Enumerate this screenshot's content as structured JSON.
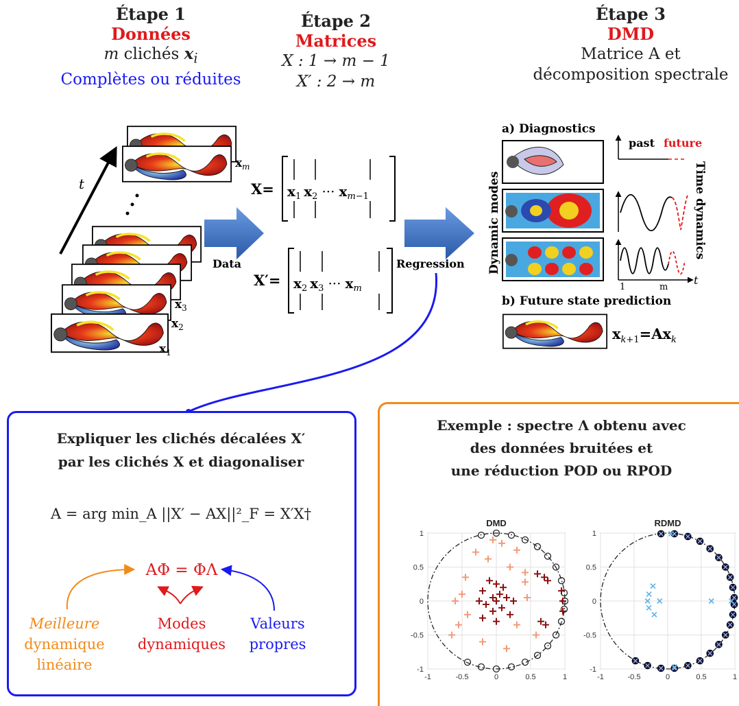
{
  "step1": {
    "title": "Étape 1",
    "subtitle": "Données",
    "line1": "m clichés xi",
    "line2": "Complètes ou réduites"
  },
  "step2": {
    "title": "Étape 2",
    "subtitle": "Matrices",
    "line1": "X : 1 → m − 1",
    "line2": "X′ : 2 → m"
  },
  "step3": {
    "title": "Étape 3",
    "subtitle": "DMD",
    "line1": "Matrice A et",
    "line2": "décomposition spectrale"
  },
  "diagram": {
    "t_label": "t",
    "snap_labels": [
      "x_m",
      "x_3",
      "x_2",
      "x_1"
    ],
    "data_label": "Data",
    "regression_label": "Regression",
    "matrix_X": "X=",
    "matrix_X_cols": "x1  x2  ···  xm−1",
    "matrix_Xp": "X′=",
    "matrix_Xp_cols": "x2  x3  ···  xm",
    "diag_title": "a) Diagnostics",
    "past": "past",
    "future": "future",
    "dynamic_modes": "Dynamic modes",
    "time_dynamics": "Time dynamics",
    "tick1": "1",
    "tickm": "m",
    "t_axis": "t",
    "future_title": "b) Future state prediction",
    "future_eq": "x k+1 = A x k"
  },
  "left_box": {
    "title1": "Expliquer les clichés décalées X′",
    "title2": "par les clichés X et diagonaliser",
    "formula": "A = arg min_A ||X′ − AX||²_F = X′X†",
    "eq": "AΦ = ΦΛ",
    "lab_left1": "Meilleure",
    "lab_left2": "dynamique",
    "lab_left3": "linéaire",
    "lab_mid1": "Modes",
    "lab_mid2": "dynamiques",
    "lab_right1": "Valeurs",
    "lab_right2": "propres"
  },
  "right_box": {
    "title1": "Exemple : spectre Λ obtenu avec",
    "title2": "des données bruitées et",
    "title3": "une réduction POD ou RPOD"
  },
  "chart_data": [
    {
      "type": "scatter",
      "title": "DMD",
      "xlim": [
        -1,
        1
      ],
      "ylim": [
        -1,
        1
      ],
      "xticks": [
        "-1",
        "-0.5",
        "0",
        "0.5",
        "1"
      ],
      "yticks": [
        "1",
        "0.5",
        "0",
        "-0.5",
        "-1"
      ],
      "grid": true,
      "series": [
        {
          "marker": "circle",
          "color": "#222222",
          "points": [
            [
              0,
              1
            ],
            [
              -0.22,
              0.97
            ],
            [
              0.22,
              0.97
            ],
            [
              0.42,
              0.9
            ],
            [
              0.6,
              0.8
            ],
            [
              0.75,
              0.66
            ],
            [
              0.87,
              0.5
            ],
            [
              0.95,
              0.3
            ],
            [
              0.99,
              0.12
            ],
            [
              1,
              0
            ],
            [
              0.99,
              -0.12
            ],
            [
              0.95,
              -0.3
            ],
            [
              0.87,
              -0.5
            ],
            [
              0.75,
              -0.66
            ],
            [
              0.6,
              -0.8
            ],
            [
              0.42,
              -0.9
            ],
            [
              0.22,
              -0.97
            ],
            [
              0,
              -1
            ],
            [
              -0.22,
              -0.97
            ],
            [
              -0.42,
              -0.9
            ]
          ]
        },
        {
          "marker": "plus",
          "color": "#f29a78",
          "points": [
            [
              0.08,
              0.85
            ],
            [
              0.3,
              0.75
            ],
            [
              -0.3,
              0.72
            ],
            [
              -0.12,
              0.62
            ],
            [
              0.2,
              0.5
            ],
            [
              0.42,
              0.42
            ],
            [
              -0.45,
              0.35
            ],
            [
              -0.5,
              0.1
            ],
            [
              -0.6,
              0
            ],
            [
              0.45,
              0.05
            ],
            [
              -0.42,
              -0.2
            ],
            [
              -0.55,
              -0.35
            ],
            [
              0.3,
              -0.35
            ],
            [
              -0.65,
              -0.5
            ],
            [
              -0.2,
              -0.6
            ],
            [
              0.15,
              -0.7
            ],
            [
              0.58,
              -0.5
            ],
            [
              0.42,
              0.28
            ],
            [
              -0.05,
              0.9
            ]
          ]
        },
        {
          "marker": "plus",
          "color": "#8a1010",
          "points": [
            [
              -0.1,
              0.3
            ],
            [
              0,
              0.25
            ],
            [
              0.1,
              0.2
            ],
            [
              -0.2,
              0.15
            ],
            [
              0.05,
              0.1
            ],
            [
              -0.05,
              0.05
            ],
            [
              0.15,
              0.05
            ],
            [
              -0.25,
              0
            ],
            [
              0,
              0
            ],
            [
              0.25,
              0
            ],
            [
              -0.15,
              -0.05
            ],
            [
              0.08,
              -0.1
            ],
            [
              -0.05,
              -0.15
            ],
            [
              0.2,
              -0.2
            ],
            [
              -0.2,
              -0.25
            ],
            [
              0,
              -0.3
            ],
            [
              0.6,
              0.4
            ],
            [
              0.7,
              0.35
            ],
            [
              0.75,
              0.3
            ],
            [
              0.65,
              -0.3
            ],
            [
              0.72,
              -0.35
            ],
            [
              0.95,
              0.15
            ],
            [
              0.97,
              -0.15
            ],
            [
              0.97,
              0
            ]
          ]
        }
      ]
    },
    {
      "type": "scatter",
      "title": "RDMD",
      "xlim": [
        -1,
        1
      ],
      "ylim": [
        -1,
        1
      ],
      "xticks": [
        "-1",
        "-0.5",
        "0",
        "0.5",
        "1"
      ],
      "yticks": [
        "1",
        "0.5",
        "0",
        "-0.5",
        "-1"
      ],
      "grid": true,
      "series": [
        {
          "marker": "circle-filled",
          "color": "#0a1a5a",
          "points": [
            [
              -0.1,
              0.99
            ],
            [
              0.1,
              0.99
            ],
            [
              0.3,
              0.95
            ],
            [
              0.48,
              0.88
            ],
            [
              0.63,
              0.77
            ],
            [
              0.76,
              0.64
            ],
            [
              0.86,
              0.5
            ],
            [
              0.93,
              0.35
            ],
            [
              0.97,
              0.2
            ],
            [
              0.99,
              0.05
            ],
            [
              0.99,
              -0.05
            ],
            [
              0.97,
              -0.2
            ],
            [
              0.93,
              -0.35
            ],
            [
              0.86,
              -0.5
            ],
            [
              0.76,
              -0.64
            ],
            [
              0.63,
              -0.77
            ],
            [
              0.48,
              -0.88
            ],
            [
              0.3,
              -0.95
            ],
            [
              0.1,
              -0.99
            ],
            [
              -0.1,
              -0.99
            ],
            [
              -0.3,
              -0.95
            ],
            [
              -0.48,
              -0.88
            ]
          ]
        },
        {
          "marker": "x",
          "color": "#5fb3e8",
          "points": [
            [
              0.05,
              0.99
            ],
            [
              -0.22,
              0.22
            ],
            [
              -0.28,
              0.1
            ],
            [
              -0.12,
              0
            ],
            [
              -0.28,
              -0.1
            ],
            [
              -0.2,
              -0.2
            ],
            [
              -0.3,
              0
            ],
            [
              0.65,
              0
            ],
            [
              0.95,
              0
            ],
            [
              0.1,
              -0.97
            ]
          ]
        }
      ]
    }
  ]
}
